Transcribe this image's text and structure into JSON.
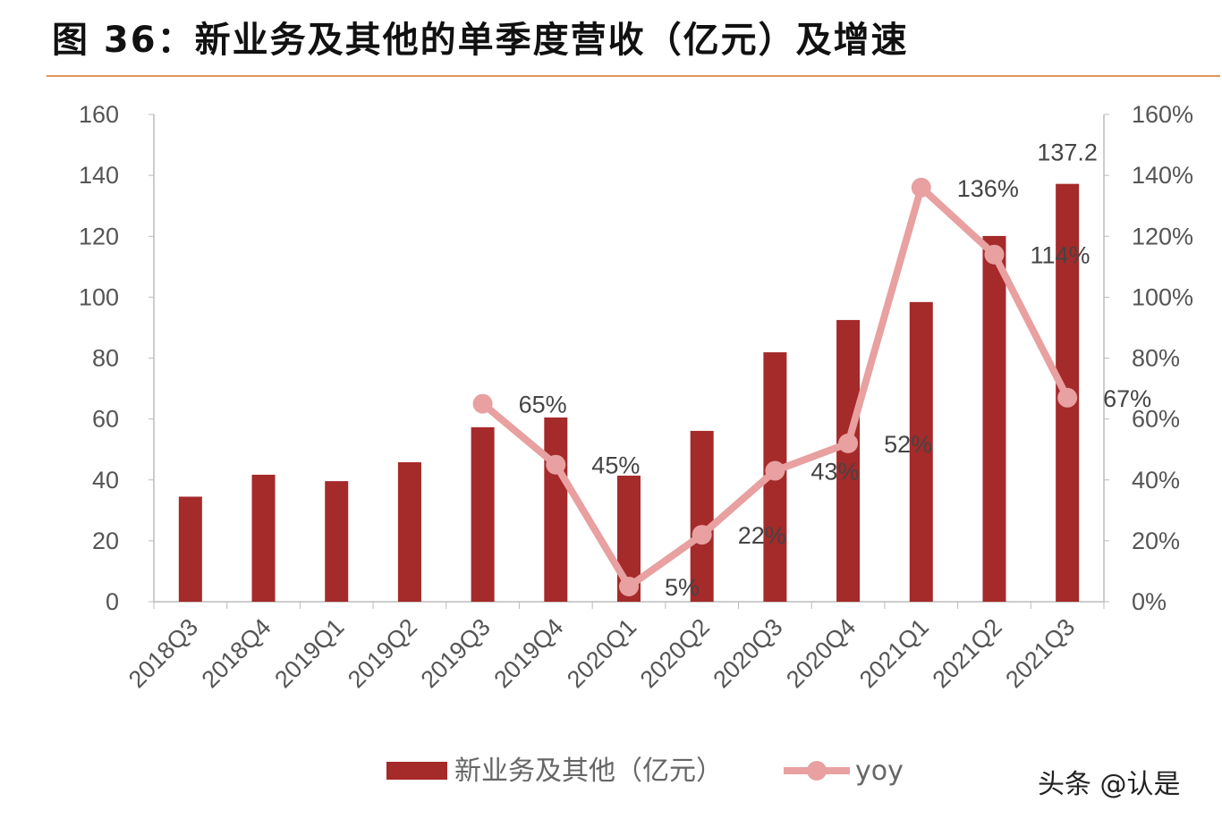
{
  "title": "图 36：新业务及其他的单季度营收（亿元）及增速",
  "watermark": "头条 @认是",
  "colors": {
    "bar": "#a52a2a",
    "line": "#e8a0a0",
    "rule": "#e0965a"
  },
  "chart_data": {
    "type": "bar+line",
    "title": "图 36：新业务及其他的单季度营收（亿元）及增速",
    "categories": [
      "2018Q3",
      "2018Q4",
      "2019Q1",
      "2019Q2",
      "2019Q3",
      "2019Q4",
      "2020Q1",
      "2020Q2",
      "2020Q3",
      "2020Q4",
      "2021Q1",
      "2021Q2",
      "2021Q3"
    ],
    "series": [
      {
        "name": "新业务及其他（亿元）",
        "type": "bar",
        "axis": "left",
        "values": [
          34.5,
          41.7,
          39.6,
          45.8,
          57.3,
          60.5,
          41.4,
          56.1,
          81.9,
          92.5,
          98.4,
          120.1,
          137.2
        ],
        "data_labels": [
          null,
          null,
          null,
          null,
          null,
          null,
          null,
          null,
          null,
          null,
          null,
          null,
          "137.2"
        ]
      },
      {
        "name": "yoy",
        "type": "line",
        "axis": "right",
        "values": [
          null,
          null,
          null,
          null,
          65,
          45,
          5,
          22,
          43,
          52,
          136,
          114,
          67
        ],
        "data_labels": [
          null,
          null,
          null,
          null,
          "65%",
          "45%",
          "5%",
          "22%",
          "43%",
          "52%",
          "136%",
          "114%",
          "67%"
        ]
      }
    ],
    "y_left": {
      "range": [
        0,
        160
      ],
      "ticks": [
        "0",
        "20",
        "40",
        "60",
        "80",
        "100",
        "120",
        "140",
        "160"
      ]
    },
    "y_right": {
      "range": [
        0,
        160
      ],
      "ticks": [
        "0%",
        "20%",
        "40%",
        "60%",
        "80%",
        "100%",
        "120%",
        "140%",
        "160%"
      ]
    },
    "grid": false,
    "legend": {
      "position": "bottom",
      "entries": [
        "新业务及其他（亿元）",
        "yoy"
      ]
    }
  }
}
